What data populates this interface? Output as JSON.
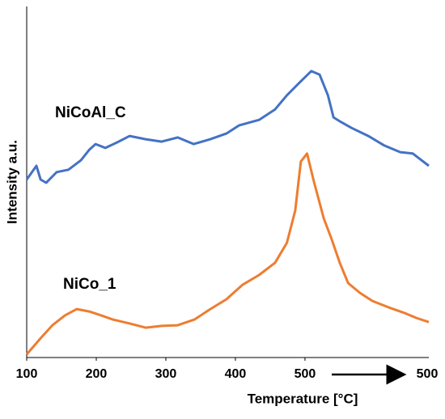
{
  "chart_data": {
    "type": "line",
    "x_label": "Temperature [°C]",
    "y_label": "Intensity a.u.",
    "xlim": [
      100,
      678
    ],
    "xticks": [
      100,
      200,
      300,
      400,
      500
    ],
    "isothermal_label": "500",
    "ylim": [
      0,
      100
    ],
    "grid": false,
    "series": [
      {
        "name": "NiCoAl_C",
        "color": "#4472c4",
        "x": [
          100,
          114,
          120,
          128,
          143,
          160,
          178,
          190,
          199,
          213,
          230,
          248,
          271,
          294,
          317,
          340,
          364,
          387,
          405,
          434,
          457,
          474,
          492,
          509,
          521,
          533,
          541,
          550,
          567,
          591,
          614,
          637,
          655,
          678
        ],
        "values": [
          50.7,
          54.6,
          50.7,
          49.8,
          52.8,
          53.5,
          56.2,
          59.2,
          60.8,
          59.7,
          61.3,
          63.1,
          62.2,
          61.5,
          62.7,
          60.8,
          62.2,
          63.8,
          66.1,
          67.7,
          70.7,
          74.7,
          78.3,
          81.6,
          80.6,
          74.7,
          68.4,
          67.3,
          65.4,
          63.1,
          60.4,
          58.5,
          58.1,
          54.6
        ]
      },
      {
        "name": "NiCo_1",
        "color": "#ed7d31",
        "x": [
          100,
          120,
          137,
          155,
          172,
          190,
          207,
          224,
          248,
          271,
          294,
          317,
          341,
          364,
          387,
          410,
          434,
          457,
          474,
          486,
          494,
          503,
          513,
          527,
          538,
          550,
          562,
          579,
          597,
          620,
          643,
          660,
          678
        ],
        "values": [
          0.9,
          5.5,
          9.2,
          12.0,
          13.8,
          13.1,
          12.0,
          10.8,
          9.7,
          8.5,
          9.0,
          9.2,
          10.8,
          13.8,
          16.6,
          20.7,
          23.5,
          27.0,
          32.7,
          41.9,
          55.8,
          58.1,
          50.0,
          39.6,
          33.9,
          27.0,
          21.2,
          18.4,
          16.1,
          14.3,
          12.7,
          11.3,
          10.1
        ]
      }
    ]
  }
}
